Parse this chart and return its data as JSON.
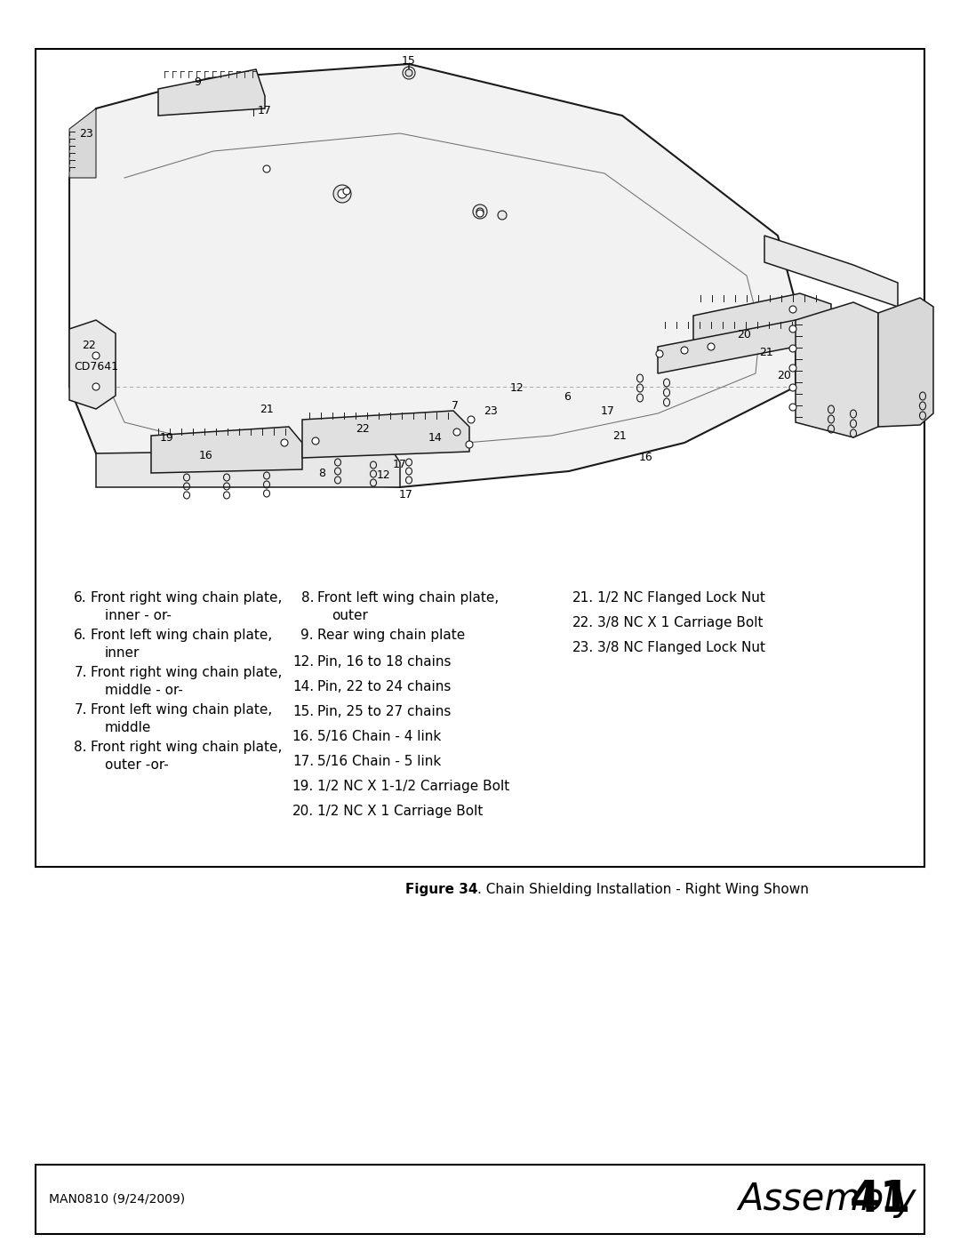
{
  "page_bg": "#ffffff",
  "footer_left": "MAN0810 (9/24/2009)",
  "parts_col1": [
    [
      "6.",
      "Front right wing chain plate,",
      "inner - or-"
    ],
    [
      "6.",
      "Front left wing chain plate,",
      "inner"
    ],
    [
      "7.",
      "Front right wing chain plate,",
      "middle - or-"
    ],
    [
      "7.",
      "Front left wing chain plate,",
      "middle"
    ],
    [
      "8.",
      "Front right wing chain plate,",
      "outer -or-"
    ]
  ],
  "parts_col2": [
    [
      "8.",
      "Front left wing chain plate,",
      "outer"
    ],
    [
      "9.",
      "Rear wing chain plate",
      ""
    ],
    [
      "12.",
      "Pin, 16 to 18 chains",
      ""
    ],
    [
      "14.",
      "Pin, 22 to 24 chains",
      ""
    ],
    [
      "15.",
      "Pin, 25 to 27 chains",
      ""
    ],
    [
      "16.",
      "5/16 Chain - 4 link",
      ""
    ],
    [
      "17.",
      "5/16 Chain - 5 link",
      ""
    ],
    [
      "19.",
      "1/2 NC X 1-1/2 Carriage Bolt",
      ""
    ],
    [
      "20.",
      "1/2 NC X 1 Carriage Bolt",
      ""
    ]
  ],
  "parts_col3": [
    [
      "21.",
      "1/2 NC Flanged Lock Nut",
      ""
    ],
    [
      "22.",
      "3/8 NC X 1 Carriage Bolt",
      ""
    ],
    [
      "23.",
      "3/8 NC Flanged Lock Nut",
      ""
    ]
  ],
  "diagram_labels": [
    [
      "15",
      460,
      68
    ],
    [
      "9",
      222,
      93
    ],
    [
      "17",
      298,
      125
    ],
    [
      "23",
      97,
      150
    ],
    [
      "22",
      100,
      388
    ],
    [
      "CD7641",
      108,
      413
    ],
    [
      "19",
      188,
      493
    ],
    [
      "16",
      232,
      513
    ],
    [
      "21",
      300,
      460
    ],
    [
      "22",
      408,
      482
    ],
    [
      "8",
      362,
      532
    ],
    [
      "12",
      432,
      535
    ],
    [
      "17",
      450,
      522
    ],
    [
      "17",
      457,
      556
    ],
    [
      "14",
      490,
      492
    ],
    [
      "7",
      512,
      457
    ],
    [
      "23",
      552,
      462
    ],
    [
      "12",
      582,
      437
    ],
    [
      "6",
      638,
      447
    ],
    [
      "17",
      684,
      462
    ],
    [
      "21",
      697,
      490
    ],
    [
      "16",
      727,
      514
    ],
    [
      "20",
      837,
      377
    ],
    [
      "21",
      862,
      397
    ],
    [
      "20",
      882,
      422
    ]
  ]
}
